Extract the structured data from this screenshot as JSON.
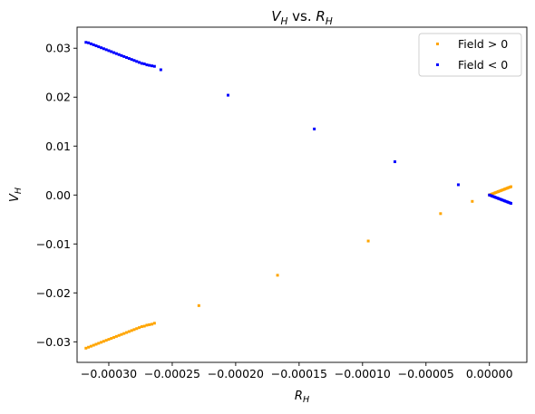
{
  "chart_data": {
    "type": "scatter",
    "title": {
      "base": "V",
      "sub": "H",
      "mid": " vs. ",
      "base2": "R",
      "sub2": "H"
    },
    "xlabel": {
      "base": "R",
      "sub": "H"
    },
    "ylabel": {
      "base": "V",
      "sub": "H"
    },
    "xlim": [
      -0.000325,
      2.95e-05
    ],
    "ylim": [
      -0.0342,
      0.0343
    ],
    "x_ticks": [
      -0.0003,
      -0.00025,
      -0.0002,
      -0.00015,
      -0.0001,
      -5e-05,
      0.0
    ],
    "x_tick_labels": [
      "−0.00030",
      "−0.00025",
      "−0.00020",
      "−0.00015",
      "−0.00010",
      "−0.00005",
      "0.00000"
    ],
    "y_ticks": [
      -0.03,
      -0.02,
      -0.01,
      0.0,
      0.01,
      0.02,
      0.03
    ],
    "y_tick_labels": [
      "−0.03",
      "−0.02",
      "−0.01",
      "0.00",
      "0.01",
      "0.02",
      "0.03"
    ],
    "grid": false,
    "legend_position": "top-right",
    "series": [
      {
        "name": "Field > 0",
        "color": "#ffa500",
        "x": [
          -0.000318,
          -0.000316,
          -0.000314,
          -0.000312,
          -0.00031,
          -0.000308,
          -0.000306,
          -0.000304,
          -0.000302,
          -0.0003,
          -0.000298,
          -0.000296,
          -0.000294,
          -0.000292,
          -0.00029,
          -0.000288,
          -0.000286,
          -0.000284,
          -0.000282,
          -0.00028,
          -0.000278,
          -0.000276,
          -0.000274,
          -0.000272,
          -0.00027,
          -0.000268,
          -0.000266,
          -0.000264,
          -0.000229,
          -0.000167,
          -9.55e-05,
          -3.85e-05,
          -1.35e-05,
          0.0,
          1e-06,
          2e-06,
          3e-06,
          4e-06,
          5e-06,
          6e-06,
          7e-06,
          8e-06,
          9e-06,
          1e-05,
          1.1e-05,
          1.2e-05,
          1.3e-05,
          1.4e-05,
          1.5e-05,
          1.6e-05,
          1.7e-05
        ],
        "y": [
          -0.0313,
          -0.0311,
          -0.0309,
          -0.0307,
          -0.0305,
          -0.0303,
          -0.0301,
          -0.0299,
          -0.0297,
          -0.0295,
          -0.0293,
          -0.0291,
          -0.0289,
          -0.0287,
          -0.0285,
          -0.0283,
          -0.0281,
          -0.0279,
          -0.0277,
          -0.0275,
          -0.0273,
          -0.0271,
          -0.0269,
          -0.0268,
          -0.0266,
          -0.0265,
          -0.0264,
          -0.0262,
          -0.0226,
          -0.0164,
          -0.0094,
          -0.0038,
          -0.0013,
          0.0,
          0.0001,
          0.0002,
          0.0003,
          0.0004,
          0.0005,
          0.0006,
          0.0007,
          0.0008,
          0.0009,
          0.001,
          0.0011,
          0.0012,
          0.0013,
          0.0014,
          0.0015,
          0.0016,
          0.0017
        ]
      },
      {
        "name": "Field < 0",
        "color": "#0000ff",
        "x": [
          -0.000318,
          -0.000316,
          -0.000314,
          -0.000312,
          -0.00031,
          -0.000308,
          -0.000306,
          -0.000304,
          -0.000302,
          -0.0003,
          -0.000298,
          -0.000296,
          -0.000294,
          -0.000292,
          -0.00029,
          -0.000288,
          -0.000286,
          -0.000284,
          -0.000282,
          -0.00028,
          -0.000278,
          -0.000276,
          -0.000274,
          -0.000272,
          -0.00027,
          -0.000268,
          -0.000266,
          -0.000264,
          -0.000259,
          -0.000206,
          -0.000138,
          -7.45e-05,
          -2.45e-05,
          0.0,
          1e-06,
          2e-06,
          3e-06,
          4e-06,
          5e-06,
          6e-06,
          7e-06,
          8e-06,
          9e-06,
          1e-05,
          1.1e-05,
          1.2e-05,
          1.3e-05,
          1.4e-05,
          1.5e-05,
          1.6e-05,
          1.7e-05
        ],
        "y": [
          0.0312,
          0.0311,
          0.0309,
          0.0307,
          0.0305,
          0.0303,
          0.0301,
          0.0299,
          0.0297,
          0.0295,
          0.0293,
          0.0291,
          0.0289,
          0.0287,
          0.0285,
          0.0283,
          0.0281,
          0.0279,
          0.0277,
          0.0275,
          0.0273,
          0.0271,
          0.0269,
          0.0268,
          0.0266,
          0.0265,
          0.0264,
          0.0263,
          0.0256,
          0.0204,
          0.0135,
          0.0068,
          0.0021,
          0.0,
          -0.0001,
          -0.0002,
          -0.0003,
          -0.0004,
          -0.0005,
          -0.0006,
          -0.0007,
          -0.0008,
          -0.0009,
          -0.001,
          -0.0011,
          -0.0012,
          -0.0013,
          -0.0014,
          -0.0015,
          -0.0016,
          -0.0017
        ]
      }
    ]
  }
}
